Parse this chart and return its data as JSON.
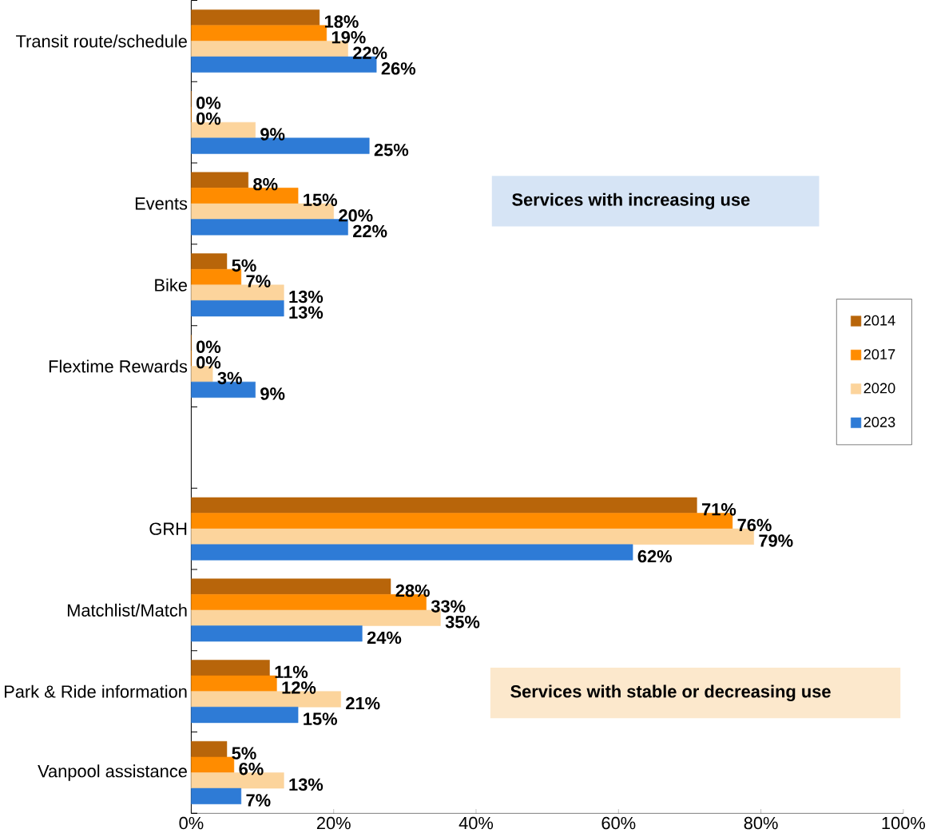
{
  "chart_data": {
    "type": "bar",
    "orientation": "horizontal",
    "categories": [
      "Transit route/schedule",
      null,
      "Events",
      "Bike",
      "Flextime Rewards",
      null,
      "GRH",
      "Matchlist/Match",
      "Park & Ride information",
      "Vanpool assistance"
    ],
    "series": [
      {
        "name": "2014",
        "color": "#b8650a",
        "values": [
          18,
          0,
          8,
          5,
          0,
          null,
          71,
          28,
          11,
          5
        ],
        "value_labels": [
          "18%",
          "0%",
          "8%",
          "5%",
          "0%",
          null,
          "71%",
          "28%",
          "11%",
          "5%"
        ]
      },
      {
        "name": "2017",
        "color": "#ff8c00",
        "values": [
          19,
          0,
          15,
          7,
          0,
          null,
          76,
          33,
          12,
          6
        ],
        "value_labels": [
          "19%",
          "0%",
          "15%",
          "7%",
          "0%",
          null,
          "76%",
          "33%",
          "12%",
          "6%"
        ]
      },
      {
        "name": "2020",
        "color": "#fcd49c",
        "values": [
          22,
          9,
          20,
          13,
          3,
          null,
          79,
          35,
          21,
          13
        ],
        "value_labels": [
          "22%",
          "9%",
          "20%",
          "13%",
          "3%",
          null,
          "79%",
          "35%",
          "21%",
          "13%"
        ]
      },
      {
        "name": "2023",
        "color": "#2e7bd6",
        "values": [
          26,
          25,
          22,
          13,
          9,
          null,
          62,
          24,
          15,
          7
        ],
        "value_labels": [
          "26%",
          "25%",
          "22%",
          "13%",
          "9%",
          null,
          "62%",
          "24%",
          "15%",
          "7%"
        ]
      }
    ],
    "xlim": [
      0,
      100
    ],
    "xticks": [
      {
        "value": 0,
        "label": "0%"
      },
      {
        "value": 20,
        "label": "20%"
      },
      {
        "value": 40,
        "label": "40%"
      },
      {
        "value": 60,
        "label": "60%"
      },
      {
        "value": 80,
        "label": "80%"
      },
      {
        "value": 100,
        "label": "100%"
      }
    ],
    "annotations": [
      "Services with increasing use",
      "Services with stable or decreasing use"
    ],
    "legend": "right",
    "grid": false
  }
}
